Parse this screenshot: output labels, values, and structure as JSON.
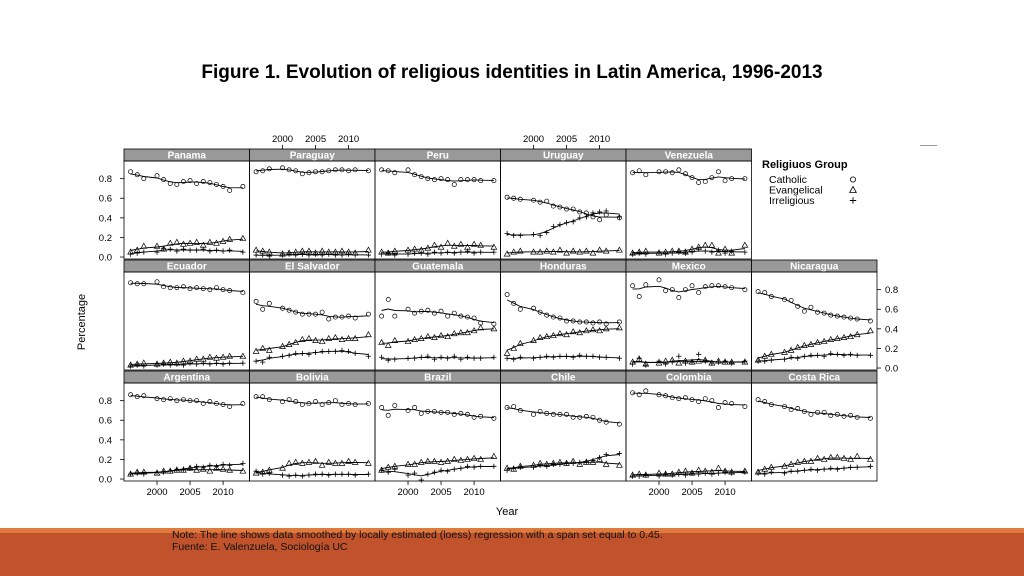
{
  "title": "Figure 1. Evolution of religious identities in Latin America, 1996-2013",
  "notes": {
    "line1": "Note:  The line shows data smoothed by locally estimated (loess) regression with a span set equal to 0.45.",
    "line2": "Fuente: E. Valenzuela, Sociología UC"
  },
  "colors": {
    "band": "#c0532b",
    "stripe": "#e07a3c",
    "strip_bg": "#999999",
    "ink": "#000000"
  },
  "chart_data": {
    "type": "scatter",
    "layout": "small-multiples",
    "xlabel": "Year",
    "ylabel": "Percentage",
    "x_ticks": [
      2000,
      2005,
      2010
    ],
    "y_ticks": [
      "0.0",
      "0.2",
      "0.4",
      "0.6",
      "0.8"
    ],
    "xlim": [
      1995,
      2014
    ],
    "ylim": [
      -0.02,
      0.98
    ],
    "legend": {
      "title": "Religiuos Group",
      "position": "right",
      "entries": [
        {
          "name": "Catholic",
          "symbol": "circle"
        },
        {
          "name": "Evangelical",
          "symbol": "triangle"
        },
        {
          "name": "Irreligious",
          "symbol": "plus"
        }
      ]
    },
    "x": [
      1996,
      1997,
      1998,
      2000,
      2001,
      2002,
      2003,
      2004,
      2005,
      2006,
      2007,
      2008,
      2009,
      2010,
      2011,
      2013
    ],
    "panels": [
      {
        "country": "Panama",
        "catholic": [
          0.87,
          0.84,
          0.8,
          0.83,
          0.79,
          0.75,
          0.74,
          0.77,
          0.78,
          0.75,
          0.77,
          0.76,
          0.74,
          0.72,
          0.68,
          0.72
        ],
        "evangelical": [
          0.05,
          0.07,
          0.11,
          0.11,
          0.08,
          0.14,
          0.15,
          0.13,
          0.14,
          0.15,
          0.12,
          0.15,
          0.14,
          0.16,
          0.18,
          0.19
        ],
        "irreligious": [
          0.03,
          0.04,
          0.05,
          0.05,
          0.09,
          0.08,
          0.06,
          0.08,
          0.07,
          0.07,
          0.08,
          0.06,
          0.07,
          0.06,
          0.07,
          0.05
        ]
      },
      {
        "country": "Paraguay",
        "catholic": [
          0.87,
          0.88,
          0.9,
          0.91,
          0.89,
          0.88,
          0.85,
          0.86,
          0.87,
          0.87,
          0.88,
          0.89,
          0.89,
          0.88,
          0.89,
          0.88
        ],
        "evangelical": [
          0.07,
          0.06,
          0.05,
          0.03,
          0.04,
          0.05,
          0.06,
          0.06,
          0.04,
          0.06,
          0.05,
          0.05,
          0.06,
          0.05,
          0.04,
          0.07
        ],
        "irreligious": [
          0.02,
          0.02,
          0.01,
          0.02,
          0.03,
          0.02,
          0.03,
          0.02,
          0.03,
          0.02,
          0.03,
          0.02,
          0.02,
          0.03,
          0.02,
          0.02
        ]
      },
      {
        "country": "Peru",
        "catholic": [
          0.89,
          0.88,
          0.86,
          0.89,
          0.84,
          0.82,
          0.8,
          0.79,
          0.8,
          0.79,
          0.74,
          0.79,
          0.79,
          0.79,
          0.78,
          0.78
        ],
        "evangelical": [
          0.05,
          0.04,
          0.06,
          0.07,
          0.08,
          0.07,
          0.09,
          0.12,
          0.1,
          0.14,
          0.11,
          0.13,
          0.1,
          0.13,
          0.12,
          0.1
        ],
        "irreligious": [
          0.03,
          0.04,
          0.02,
          0.03,
          0.04,
          0.04,
          0.03,
          0.05,
          0.04,
          0.05,
          0.04,
          0.05,
          0.06,
          0.04,
          0.05,
          0.05
        ]
      },
      {
        "country": "Uruguay",
        "catholic": [
          0.61,
          0.6,
          0.59,
          0.58,
          0.56,
          0.57,
          0.52,
          0.51,
          0.49,
          0.49,
          0.46,
          0.45,
          0.41,
          0.38,
          0.43,
          0.4
        ],
        "evangelical": [
          0.03,
          0.05,
          0.06,
          0.05,
          0.05,
          0.06,
          0.05,
          0.07,
          0.04,
          0.06,
          0.05,
          0.06,
          0.04,
          0.07,
          0.06,
          0.07
        ],
        "irreligious": [
          0.24,
          0.22,
          0.22,
          0.23,
          0.22,
          0.25,
          0.31,
          0.33,
          0.35,
          0.36,
          0.4,
          0.41,
          0.45,
          0.46,
          0.47,
          0.41
        ]
      },
      {
        "country": "Venezuela",
        "catholic": [
          0.86,
          0.88,
          0.84,
          0.87,
          0.87,
          0.86,
          0.89,
          0.85,
          0.81,
          0.76,
          0.77,
          0.81,
          0.87,
          0.78,
          0.8,
          0.8
        ],
        "evangelical": [
          0.04,
          0.05,
          0.06,
          0.04,
          0.05,
          0.06,
          0.06,
          0.05,
          0.08,
          0.1,
          0.12,
          0.12,
          0.04,
          0.08,
          0.04,
          0.12
        ],
        "irreligious": [
          0.03,
          0.04,
          0.03,
          0.05,
          0.03,
          0.04,
          0.05,
          0.04,
          0.05,
          0.08,
          0.06,
          0.05,
          0.07,
          0.04,
          0.06,
          0.05
        ]
      },
      {
        "country": "Ecuador",
        "catholic": [
          0.87,
          0.86,
          0.86,
          0.88,
          0.83,
          0.82,
          0.82,
          0.83,
          0.81,
          0.82,
          0.81,
          0.8,
          0.82,
          0.8,
          0.79,
          0.77
        ],
        "evangelical": [
          0.03,
          0.04,
          0.05,
          0.04,
          0.05,
          0.06,
          0.05,
          0.07,
          0.07,
          0.09,
          0.09,
          0.11,
          0.1,
          0.11,
          0.12,
          0.12
        ],
        "irreligious": [
          0.02,
          0.03,
          0.02,
          0.03,
          0.04,
          0.03,
          0.04,
          0.03,
          0.05,
          0.04,
          0.05,
          0.04,
          0.05,
          0.04,
          0.05,
          0.05
        ]
      },
      {
        "country": "El Salvador",
        "catholic": [
          0.68,
          0.6,
          0.66,
          0.61,
          0.59,
          0.57,
          0.55,
          0.55,
          0.55,
          0.57,
          0.5,
          0.52,
          0.52,
          0.53,
          0.51,
          0.55
        ],
        "evangelical": [
          0.17,
          0.2,
          0.18,
          0.22,
          0.24,
          0.26,
          0.29,
          0.3,
          0.28,
          0.27,
          0.3,
          0.31,
          0.29,
          0.3,
          0.3,
          0.34
        ],
        "irreligious": [
          0.07,
          0.06,
          0.11,
          0.12,
          0.13,
          0.15,
          0.15,
          0.14,
          0.16,
          0.17,
          0.17,
          0.17,
          0.18,
          0.17,
          0.15,
          0.12
        ]
      },
      {
        "country": "Guatemala",
        "catholic": [
          0.53,
          0.7,
          0.53,
          0.6,
          0.56,
          0.58,
          0.59,
          0.56,
          0.58,
          0.53,
          0.56,
          0.53,
          0.52,
          0.51,
          0.46,
          0.45
        ],
        "evangelical": [
          0.26,
          0.23,
          0.28,
          0.27,
          0.29,
          0.3,
          0.32,
          0.31,
          0.33,
          0.32,
          0.35,
          0.36,
          0.36,
          0.38,
          0.41,
          0.4
        ],
        "irreligious": [
          0.11,
          0.08,
          0.09,
          0.1,
          0.1,
          0.11,
          0.12,
          0.09,
          0.11,
          0.1,
          0.12,
          0.09,
          0.11,
          0.1,
          0.1,
          0.11
        ]
      },
      {
        "country": "Honduras",
        "catholic": [
          0.75,
          0.66,
          0.6,
          0.61,
          0.57,
          0.54,
          0.52,
          0.51,
          0.48,
          0.48,
          0.47,
          0.47,
          0.46,
          0.47,
          0.45,
          0.47
        ],
        "evangelical": [
          0.15,
          0.2,
          0.25,
          0.28,
          0.31,
          0.32,
          0.33,
          0.35,
          0.34,
          0.37,
          0.36,
          0.38,
          0.39,
          0.38,
          0.4,
          0.41
        ],
        "irreligious": [
          0.1,
          0.09,
          0.11,
          0.1,
          0.11,
          0.12,
          0.11,
          0.12,
          0.12,
          0.11,
          0.13,
          0.12,
          0.12,
          0.11,
          0.11,
          0.1
        ]
      },
      {
        "country": "Mexico",
        "catholic": [
          0.84,
          0.73,
          0.85,
          0.9,
          0.79,
          0.8,
          0.72,
          0.8,
          0.84,
          0.77,
          0.83,
          0.84,
          0.84,
          0.83,
          0.82,
          0.8
        ],
        "evangelical": [
          0.06,
          0.09,
          0.04,
          0.05,
          0.07,
          0.08,
          0.05,
          0.07,
          0.06,
          0.07,
          0.08,
          0.05,
          0.07,
          0.06,
          0.06,
          0.06
        ],
        "irreligious": [
          0.04,
          0.1,
          0.03,
          0.07,
          0.04,
          0.06,
          0.12,
          0.05,
          0.06,
          0.14,
          0.07,
          0.05,
          0.06,
          0.07,
          0.05,
          0.07
        ]
      },
      {
        "country": "Nicaragua",
        "catholic": [
          0.78,
          0.77,
          0.73,
          0.7,
          0.69,
          0.63,
          0.58,
          0.62,
          0.57,
          0.56,
          0.54,
          0.53,
          0.52,
          0.51,
          0.5,
          0.48
        ],
        "evangelical": [
          0.08,
          0.12,
          0.14,
          0.16,
          0.18,
          0.21,
          0.23,
          0.24,
          0.26,
          0.27,
          0.29,
          0.3,
          0.31,
          0.32,
          0.34,
          0.38
        ],
        "irreligious": [
          0.07,
          0.07,
          0.08,
          0.09,
          0.11,
          0.1,
          0.12,
          0.13,
          0.13,
          0.12,
          0.15,
          0.14,
          0.13,
          0.14,
          0.13,
          0.13
        ]
      },
      {
        "country": "Argentina",
        "catholic": [
          0.86,
          0.84,
          0.85,
          0.82,
          0.81,
          0.82,
          0.8,
          0.81,
          0.8,
          0.8,
          0.77,
          0.79,
          0.77,
          0.76,
          0.74,
          0.77
        ],
        "evangelical": [
          0.05,
          0.07,
          0.07,
          0.06,
          0.08,
          0.08,
          0.09,
          0.09,
          0.11,
          0.09,
          0.1,
          0.08,
          0.11,
          0.1,
          0.09,
          0.08
        ],
        "irreligious": [
          0.05,
          0.06,
          0.05,
          0.07,
          0.07,
          0.08,
          0.1,
          0.1,
          0.11,
          0.13,
          0.12,
          0.14,
          0.13,
          0.15,
          0.14,
          0.16
        ]
      },
      {
        "country": "Bolivia",
        "catholic": [
          0.84,
          0.84,
          0.81,
          0.79,
          0.81,
          0.79,
          0.76,
          0.77,
          0.79,
          0.76,
          0.78,
          0.8,
          0.76,
          0.77,
          0.76,
          0.77
        ],
        "evangelical": [
          0.06,
          0.07,
          0.09,
          0.11,
          0.16,
          0.17,
          0.16,
          0.17,
          0.18,
          0.14,
          0.17,
          0.16,
          0.16,
          0.18,
          0.17,
          0.16
        ],
        "irreligious": [
          0.08,
          0.05,
          0.06,
          0.04,
          0.03,
          0.04,
          0.03,
          0.04,
          0.05,
          0.05,
          0.04,
          0.05,
          0.05,
          0.05,
          0.04,
          0.05
        ]
      },
      {
        "country": "Brazil",
        "catholic": [
          0.73,
          0.65,
          0.75,
          0.7,
          0.73,
          0.67,
          0.69,
          0.69,
          0.68,
          0.68,
          0.66,
          0.67,
          0.66,
          0.63,
          0.64,
          0.62
        ],
        "evangelical": [
          0.09,
          0.12,
          0.13,
          0.15,
          0.15,
          0.17,
          0.18,
          0.18,
          0.17,
          0.18,
          0.2,
          0.19,
          0.2,
          0.21,
          0.2,
          0.23
        ],
        "irreligious": [
          0.09,
          0.07,
          0.1,
          0.04,
          0.06,
          -0.01,
          0.05,
          0.07,
          0.09,
          0.08,
          0.1,
          0.11,
          0.13,
          0.12,
          0.13,
          0.13
        ]
      },
      {
        "country": "Chile",
        "catholic": [
          0.73,
          0.74,
          0.7,
          0.66,
          0.69,
          0.67,
          0.66,
          0.66,
          0.66,
          0.63,
          0.63,
          0.64,
          0.63,
          0.6,
          0.58,
          0.56
        ],
        "evangelical": [
          0.11,
          0.1,
          0.13,
          0.14,
          0.16,
          0.15,
          0.16,
          0.17,
          0.16,
          0.18,
          0.15,
          0.17,
          0.17,
          0.2,
          0.15,
          0.14
        ],
        "irreligious": [
          0.09,
          0.11,
          0.12,
          0.12,
          0.14,
          0.13,
          0.15,
          0.15,
          0.16,
          0.16,
          0.17,
          0.18,
          0.19,
          0.22,
          0.25,
          0.26
        ]
      },
      {
        "country": "Colombia",
        "catholic": [
          0.88,
          0.86,
          0.9,
          0.86,
          0.85,
          0.83,
          0.82,
          0.83,
          0.81,
          0.79,
          0.82,
          0.8,
          0.73,
          0.78,
          0.77,
          0.74
        ],
        "evangelical": [
          0.04,
          0.05,
          0.04,
          0.06,
          0.05,
          0.05,
          0.07,
          0.08,
          0.06,
          0.09,
          0.08,
          0.07,
          0.11,
          0.08,
          0.07,
          0.08
        ],
        "irreligious": [
          0.03,
          0.03,
          0.04,
          0.03,
          0.05,
          0.04,
          0.05,
          0.04,
          0.06,
          0.05,
          0.06,
          0.05,
          0.06,
          0.07,
          0.06,
          0.07
        ]
      },
      {
        "country": "Costa Rica",
        "catholic": [
          0.81,
          0.79,
          0.76,
          0.74,
          0.71,
          0.72,
          0.69,
          0.66,
          0.68,
          0.68,
          0.65,
          0.66,
          0.64,
          0.65,
          0.63,
          0.62
        ],
        "evangelical": [
          0.07,
          0.1,
          0.12,
          0.13,
          0.15,
          0.17,
          0.18,
          0.18,
          0.21,
          0.2,
          0.22,
          0.22,
          0.21,
          0.2,
          0.23,
          0.2
        ],
        "irreligious": [
          0.06,
          0.05,
          0.07,
          0.06,
          0.08,
          0.08,
          0.09,
          0.1,
          0.09,
          0.1,
          0.11,
          0.1,
          0.11,
          0.12,
          0.12,
          0.13
        ]
      }
    ]
  }
}
